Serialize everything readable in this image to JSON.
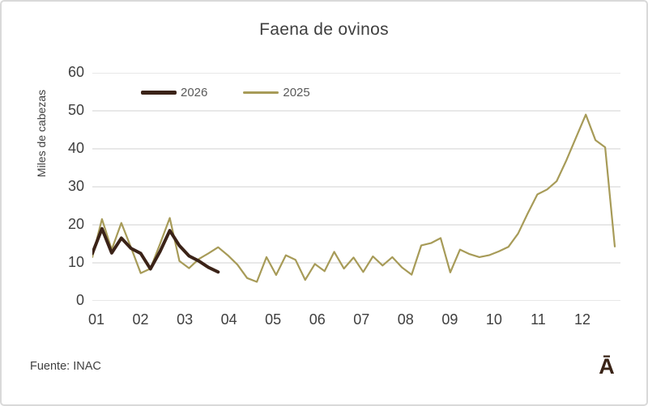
{
  "chart": {
    "title": "Faena de ovinos",
    "y_axis_title": "Miles de cabezas",
    "source": "Fuente: INAC",
    "logo_glyph": "Ā"
  },
  "chart_data": {
    "type": "line",
    "title": "Faena de ovinos",
    "xlabel": "",
    "ylabel": "Miles de cabezas",
    "ylim": [
      0,
      60
    ],
    "y_ticks": [
      0,
      10,
      20,
      30,
      40,
      50,
      60
    ],
    "x_tick_labels": [
      "01",
      "02",
      "03",
      "04",
      "05",
      "06",
      "07",
      "08",
      "09",
      "10",
      "11",
      "12"
    ],
    "x_unit": "week of year (monthly tick labels)",
    "grid": "horizontal-only",
    "grid_color": "#d9d9d9",
    "legend_position": "top-left-inside",
    "series": [
      {
        "name": "2026",
        "color": "#3b2318",
        "stroke_width": 4,
        "values": [
          12.5,
          19,
          12.6,
          16.5,
          13.8,
          12.5,
          8.4,
          13,
          18.5,
          14.5,
          11.8,
          10.5,
          8.8,
          7.6
        ]
      },
      {
        "name": "2025",
        "color": "#a79b58",
        "stroke_width": 2.2,
        "values": [
          11.5,
          21.5,
          13.5,
          20.5,
          14,
          7.3,
          8.5,
          15,
          21.8,
          10.5,
          8.6,
          11,
          12.5,
          14.1,
          12,
          9.5,
          6,
          5,
          11.5,
          6.8,
          12,
          10.8,
          5.5,
          9.7,
          7.8,
          12.9,
          8.5,
          11.4,
          7.6,
          11.7,
          9.3,
          11.5,
          8.8,
          6.9,
          14.6,
          15.2,
          16.5,
          7.5,
          13.5,
          12.3,
          11.5,
          12,
          13,
          14.2,
          17.7,
          23,
          28,
          29.3,
          31.5,
          37,
          43,
          49,
          42.3,
          40.4,
          14.3
        ]
      }
    ]
  }
}
